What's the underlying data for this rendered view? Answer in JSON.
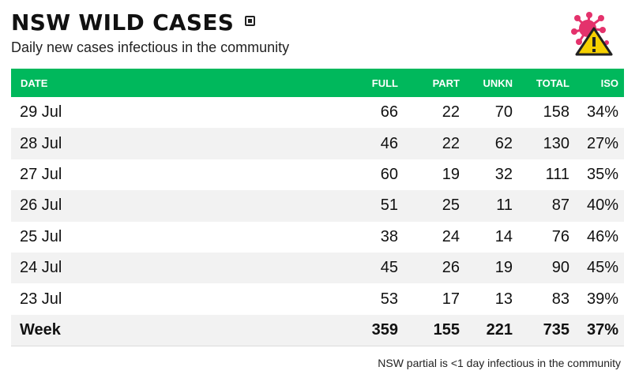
{
  "header": {
    "title": "NSW WILD CASES",
    "subtitle": "Daily new cases infectious in the community"
  },
  "icons": {
    "popout": "external-link-icon",
    "logo": "virus-warning-icon"
  },
  "colors": {
    "header_bg": "#00b85c",
    "header_text": "#ffffff",
    "row_alt": "#f2f2f2",
    "virus": "#e4326c",
    "warning": "#f5d000"
  },
  "table": {
    "columns": [
      "DATE",
      "FULL",
      "PART",
      "UNKN",
      "TOTAL",
      "ISO"
    ],
    "rows": [
      [
        "29 Jul",
        "66",
        "22",
        "70",
        "158",
        "34%"
      ],
      [
        "28 Jul",
        "46",
        "22",
        "62",
        "130",
        "27%"
      ],
      [
        "27 Jul",
        "60",
        "19",
        "32",
        "111",
        "35%"
      ],
      [
        "26 Jul",
        "51",
        "25",
        "11",
        "87",
        "40%"
      ],
      [
        "25 Jul",
        "38",
        "24",
        "14",
        "76",
        "46%"
      ],
      [
        "24 Jul",
        "45",
        "26",
        "19",
        "90",
        "45%"
      ],
      [
        "23 Jul",
        "53",
        "17",
        "13",
        "83",
        "39%"
      ]
    ],
    "total": [
      "Week",
      "359",
      "155",
      "221",
      "735",
      "37%"
    ]
  },
  "footnote": "NSW partial is <1 day infectious in the community"
}
